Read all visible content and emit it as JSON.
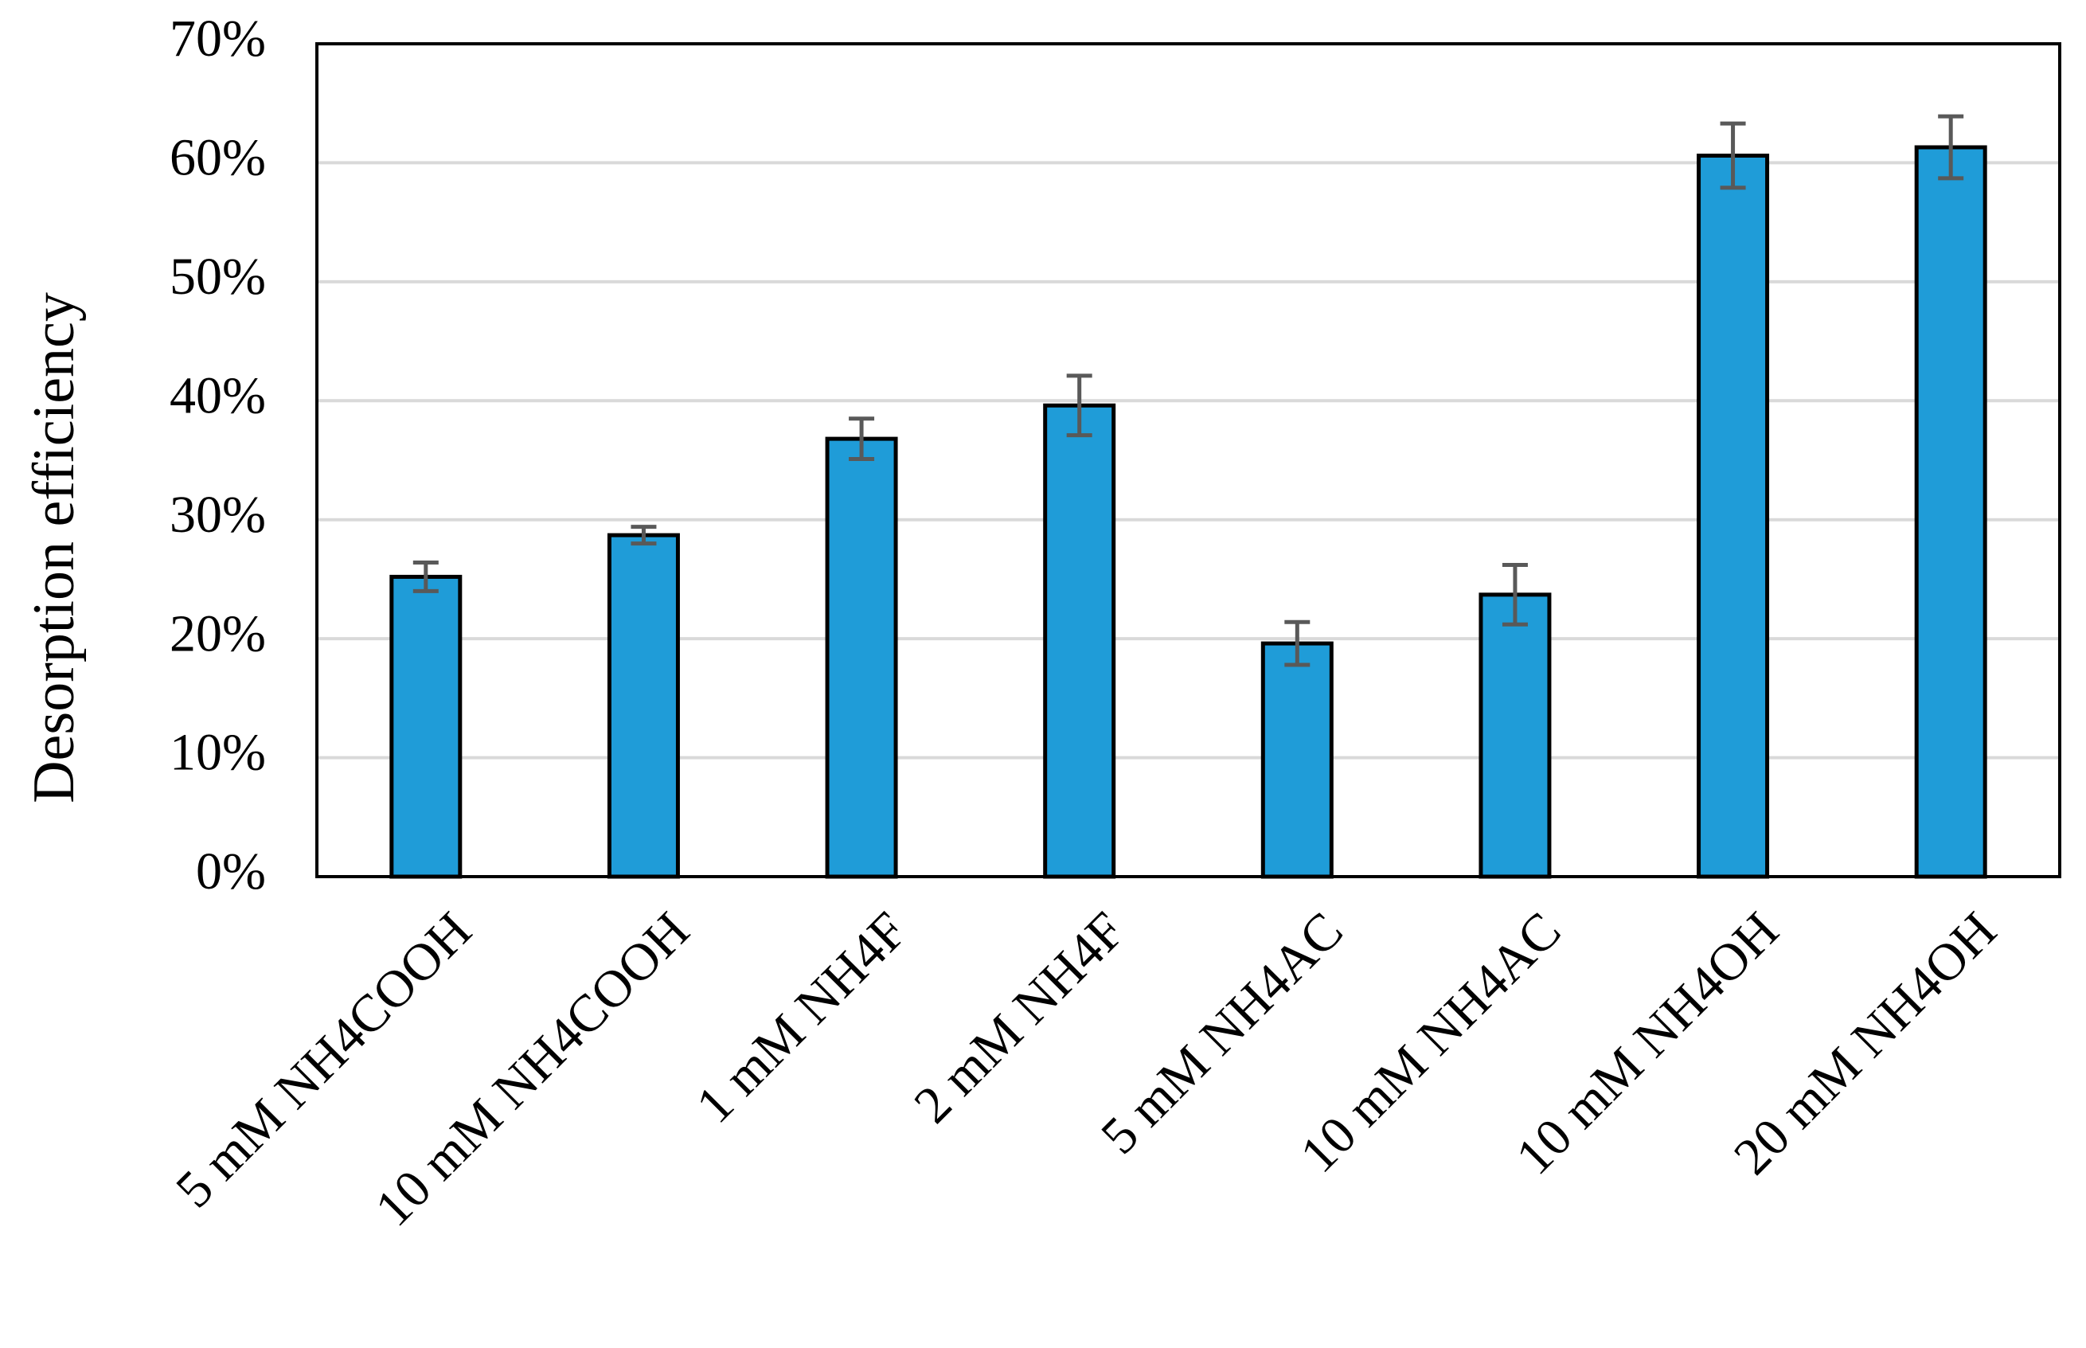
{
  "chart_data": {
    "type": "bar",
    "y_label": "Desorption efficiency",
    "categories": [
      "5 mM NH4COOH",
      "10 mM NH4COOH",
      "1 mM NH4F",
      "2 mM NH4F",
      "5 mM NH4AC",
      "10 mM NH4AC",
      "10 mM NH4OH",
      "20 mM NH4OH"
    ],
    "values": [
      25.2,
      28.7,
      36.8,
      39.6,
      19.6,
      23.7,
      60.6,
      61.3
    ],
    "errors": [
      1.2,
      0.7,
      1.7,
      2.5,
      1.8,
      2.5,
      2.7,
      2.6
    ],
    "color": "#1f9cd8",
    "error_color": "#595959",
    "ylim": [
      0,
      70
    ],
    "yticks": [
      {
        "value": 0,
        "label": "0%"
      },
      {
        "value": 10,
        "label": "10%"
      },
      {
        "value": 20,
        "label": "20%"
      },
      {
        "value": 30,
        "label": "30%"
      },
      {
        "value": 40,
        "label": "40%"
      },
      {
        "value": 50,
        "label": "50%"
      },
      {
        "value": 60,
        "label": "60%"
      },
      {
        "value": 70,
        "label": "70%"
      }
    ],
    "grid": true
  }
}
